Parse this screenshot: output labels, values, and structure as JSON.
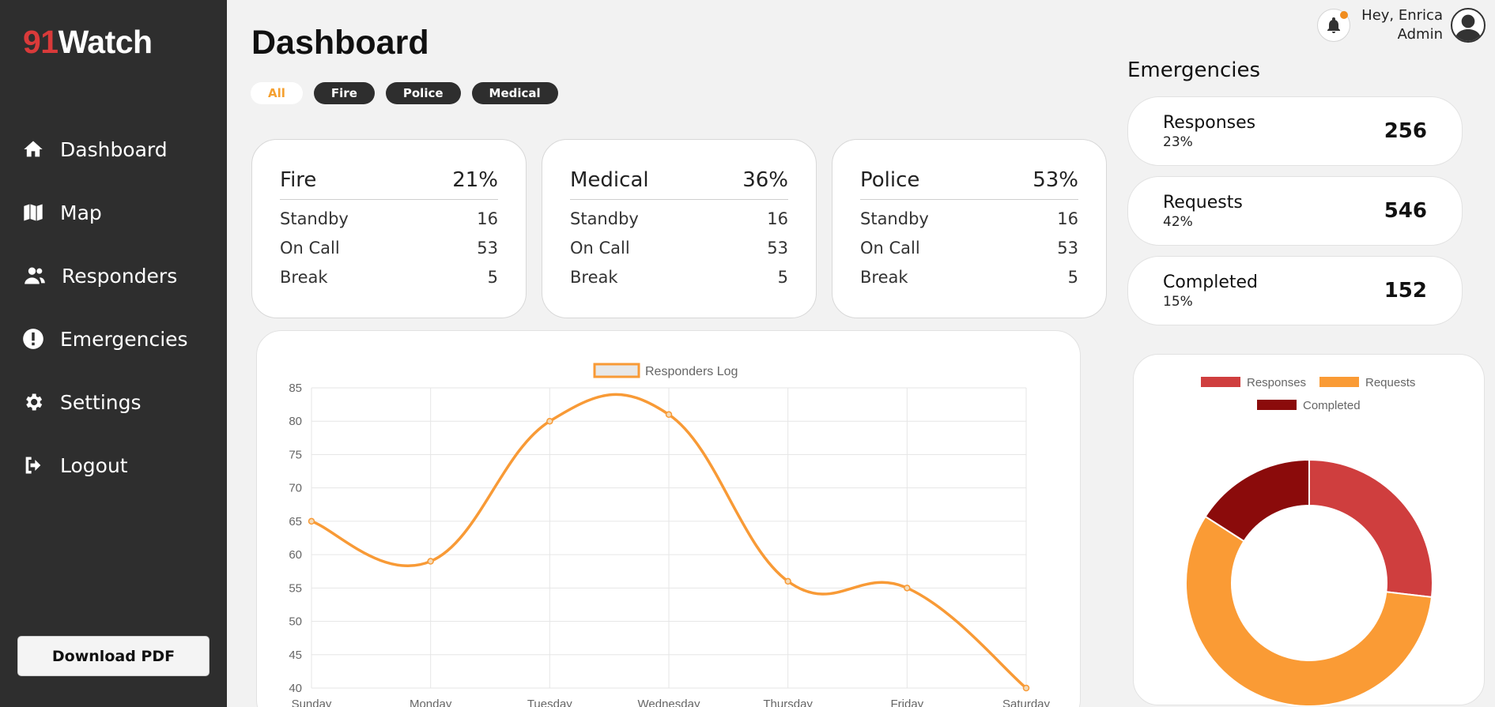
{
  "brand": {
    "prefix": "91",
    "name": "Watch"
  },
  "sidebar": {
    "items": [
      {
        "label": "Dashboard",
        "icon": "home-icon"
      },
      {
        "label": "Map",
        "icon": "map-icon"
      },
      {
        "label": "Responders",
        "icon": "users-icon"
      },
      {
        "label": "Emergencies",
        "icon": "alert-icon"
      },
      {
        "label": "Settings",
        "icon": "gear-icon"
      },
      {
        "label": "Logout",
        "icon": "logout-icon"
      }
    ],
    "download_label": "Download PDF"
  },
  "header": {
    "title": "Dashboard",
    "filters": [
      "All",
      "Fire",
      "Police",
      "Medical"
    ],
    "active_filter": "All",
    "greeting": "Hey, Enrica",
    "role": "Admin"
  },
  "categories": [
    {
      "name": "Fire",
      "percent": "21%",
      "rows": [
        {
          "label": "Standby",
          "value": "16"
        },
        {
          "label": "On Call",
          "value": "53"
        },
        {
          "label": "Break",
          "value": "5"
        }
      ]
    },
    {
      "name": "Medical",
      "percent": "36%",
      "rows": [
        {
          "label": "Standby",
          "value": "16"
        },
        {
          "label": "On Call",
          "value": "53"
        },
        {
          "label": "Break",
          "value": "5"
        }
      ]
    },
    {
      "name": "Police",
      "percent": "53%",
      "rows": [
        {
          "label": "Standby",
          "value": "16"
        },
        {
          "label": "On Call",
          "value": "53"
        },
        {
          "label": "Break",
          "value": "5"
        }
      ]
    }
  ],
  "emergencies": {
    "title": "Emergencies",
    "stats": [
      {
        "label": "Responses",
        "percent": "23%",
        "value": "256"
      },
      {
        "label": "Requests",
        "percent": "42%",
        "value": "546"
      },
      {
        "label": "Completed",
        "percent": "15%",
        "value": "152"
      }
    ]
  },
  "colors": {
    "accent": "#f5a030",
    "line": "#f89a36",
    "responses": "#cf3e3e",
    "requests": "#fa9b35",
    "completed": "#8b0b0b",
    "sidebar": "#2e2e2e",
    "logo_accent": "#d93a3a"
  },
  "chart_data": [
    {
      "type": "line",
      "categories": [
        "Sunday",
        "Monday",
        "Tuesday",
        "Wednesday",
        "Thursday",
        "Friday",
        "Saturday"
      ],
      "series": [
        {
          "name": "Responders Log",
          "values": [
            65,
            59,
            80,
            81,
            56,
            55,
            40
          ]
        }
      ],
      "ylim": [
        40,
        85
      ],
      "yticks": [
        85,
        80,
        75,
        70,
        65,
        60,
        55,
        50,
        45,
        40
      ],
      "grid": true,
      "legend": "top"
    },
    {
      "type": "pie",
      "labels": [
        "Responses",
        "Requests",
        "Completed"
      ],
      "values": [
        256,
        546,
        152
      ],
      "donut": true,
      "legend": "top"
    }
  ]
}
